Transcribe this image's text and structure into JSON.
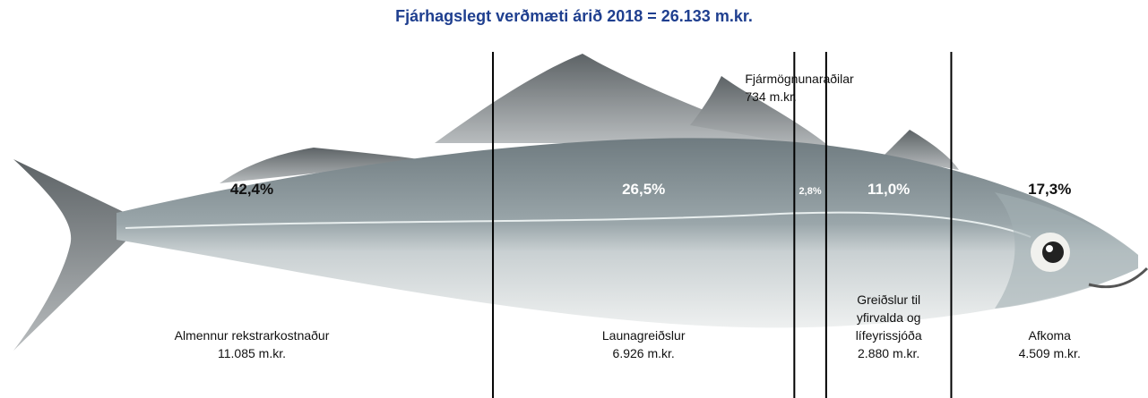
{
  "chart_data": {
    "type": "segments",
    "title": "Fjárhagslegt verðmæti árið 2018 = 26.133 m.kr.",
    "categories": [
      "Almennur rekstrarkostnaður",
      "Launagreiðslur",
      "Fjármögnunaraðilar",
      "Greiðslur til\nyfirvalda og\nlífeyrissjóða",
      "Afkoma"
    ],
    "values": [
      42.4,
      26.5,
      2.8,
      11.0,
      17.3
    ],
    "value_labels": [
      "42,4%",
      "26,5%",
      "2,8%",
      "11,0%",
      "17,3%"
    ],
    "amounts": [
      11085,
      6926,
      734,
      2880,
      4509
    ],
    "amount_labels": [
      "11.085 m.kr.",
      "6.926 m.kr.",
      "734 m.kr.",
      "2.880 m.kr.",
      "4.509 m.kr."
    ],
    "xlim": [
      0,
      100
    ],
    "color": "#000000"
  }
}
